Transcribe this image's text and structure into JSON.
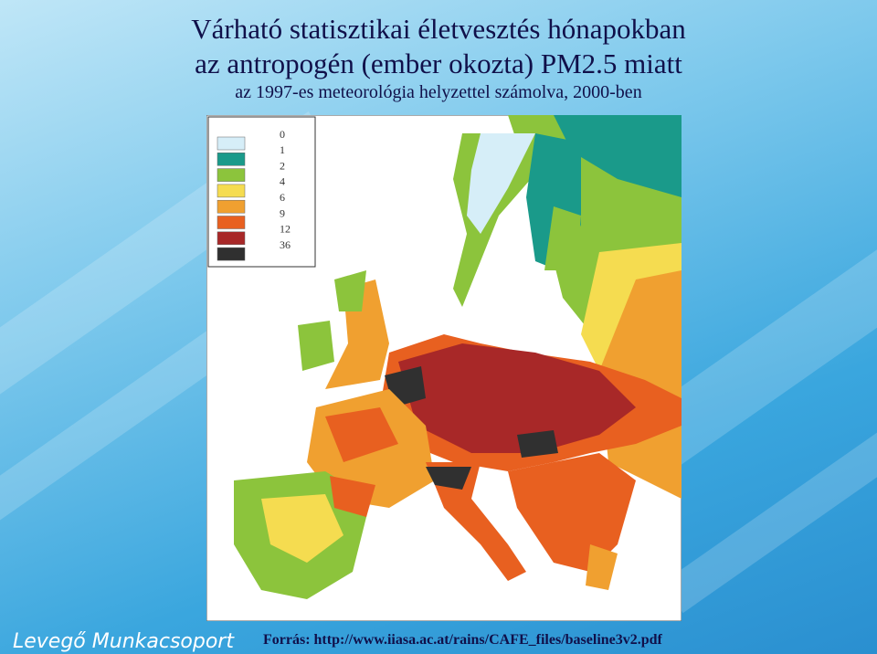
{
  "header": {
    "title_line_1": "Várható statisztikai életvesztés hónapokban",
    "title_line_2": "az antropogén (ember okozta) PM2.5 miatt",
    "subtitle": "az 1997-es meteorológia helyzettel számolva, 2000-ben"
  },
  "legend": {
    "labels": [
      "0",
      "1",
      "2",
      "4",
      "6",
      "9",
      "12",
      "36"
    ],
    "colors": [
      "#d6eef8",
      "#1a9a8a",
      "#8cc43c",
      "#f5dc50",
      "#f0a030",
      "#e86020",
      "#a82828",
      "#303030"
    ]
  },
  "footer": {
    "source": "Forrás: http://www.iiasa.ac.at/rains/CAFE_files/baseline3v2.pdf",
    "logo": "Levegő Munkacsoport"
  }
}
